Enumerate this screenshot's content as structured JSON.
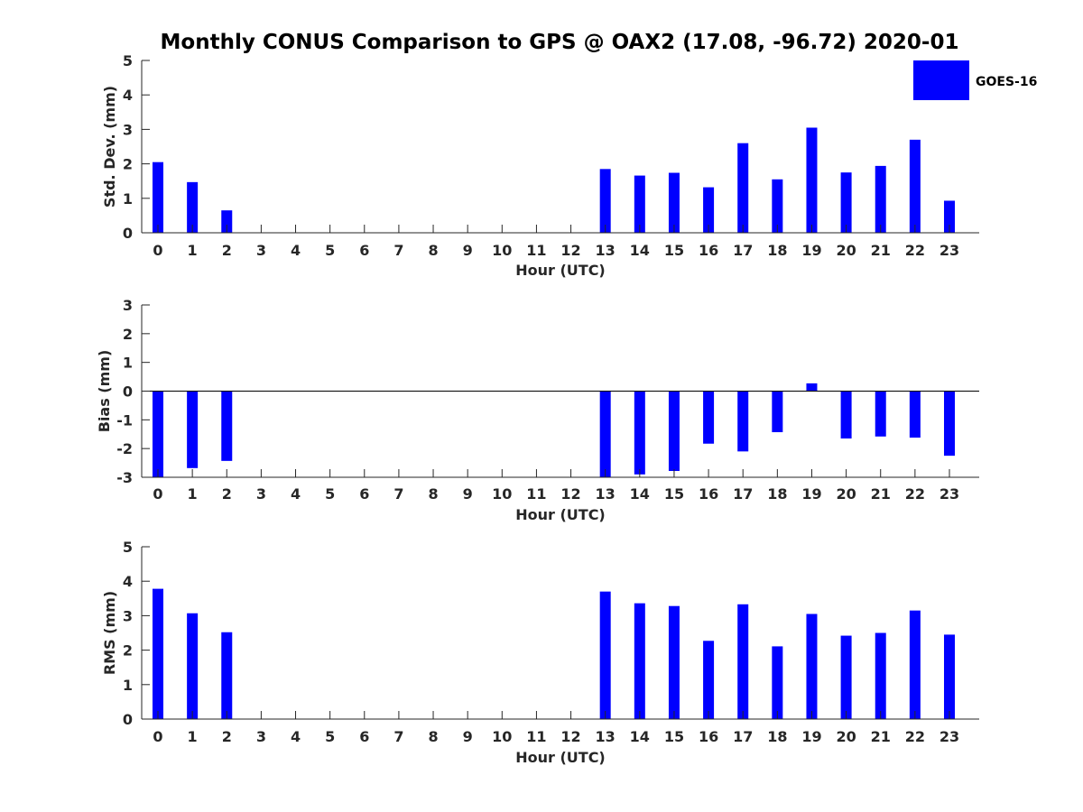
{
  "title": "Monthly CONUS Comparison to GPS @ OAX2 (17.08, -96.72) 2020-01",
  "legend": {
    "label": "GOES-16"
  },
  "colors": {
    "bar": "#0000ff",
    "axis": "#262626",
    "zero_line": "#000000"
  },
  "chart_data": [
    {
      "type": "bar",
      "name": "std",
      "series": [
        {
          "name": "GOES-16",
          "values": [
            2.05,
            1.47,
            0.65,
            null,
            null,
            null,
            null,
            null,
            null,
            null,
            null,
            null,
            null,
            1.85,
            1.66,
            1.74,
            1.32,
            2.6,
            1.55,
            3.05,
            1.75,
            1.94,
            2.7,
            0.93
          ]
        }
      ],
      "categories": [
        "0",
        "1",
        "2",
        "3",
        "4",
        "5",
        "6",
        "7",
        "8",
        "9",
        "10",
        "11",
        "12",
        "13",
        "14",
        "15",
        "16",
        "17",
        "18",
        "19",
        "20",
        "21",
        "22",
        "23"
      ],
      "xlabel": "Hour (UTC)",
      "ylabel": "Std. Dev. (mm)",
      "ylim": [
        0,
        5
      ],
      "yticks": [
        "0",
        "1",
        "2",
        "3",
        "4",
        "5"
      ],
      "grid": false,
      "legend_position": "top-right"
    },
    {
      "type": "bar",
      "name": "bias",
      "series": [
        {
          "name": "GOES-16",
          "values": [
            -3.0,
            -2.68,
            -2.43,
            null,
            null,
            null,
            null,
            null,
            null,
            null,
            null,
            null,
            null,
            -3.0,
            -2.9,
            -2.78,
            -1.83,
            -2.1,
            -1.43,
            0.27,
            -1.65,
            -1.58,
            -1.62,
            -2.25
          ]
        }
      ],
      "categories": [
        "0",
        "1",
        "2",
        "3",
        "4",
        "5",
        "6",
        "7",
        "8",
        "9",
        "10",
        "11",
        "12",
        "13",
        "14",
        "15",
        "16",
        "17",
        "18",
        "19",
        "20",
        "21",
        "22",
        "23"
      ],
      "xlabel": "Hour (UTC)",
      "ylabel": "Bias (mm)",
      "ylim": [
        -3,
        3
      ],
      "yticks": [
        "-3",
        "-2",
        "-1",
        "0",
        "1",
        "2",
        "3"
      ],
      "grid": false
    },
    {
      "type": "bar",
      "name": "rms",
      "series": [
        {
          "name": "GOES-16",
          "values": [
            3.78,
            3.07,
            2.52,
            null,
            null,
            null,
            null,
            null,
            null,
            null,
            null,
            null,
            null,
            3.7,
            3.36,
            3.28,
            2.27,
            3.33,
            2.11,
            3.05,
            2.42,
            2.5,
            3.15,
            2.45
          ]
        }
      ],
      "categories": [
        "0",
        "1",
        "2",
        "3",
        "4",
        "5",
        "6",
        "7",
        "8",
        "9",
        "10",
        "11",
        "12",
        "13",
        "14",
        "15",
        "16",
        "17",
        "18",
        "19",
        "20",
        "21",
        "22",
        "23"
      ],
      "xlabel": "Hour (UTC)",
      "ylabel": "RMS (mm)",
      "ylim": [
        0,
        5
      ],
      "yticks": [
        "0",
        "1",
        "2",
        "3",
        "4",
        "5"
      ],
      "grid": false
    }
  ]
}
